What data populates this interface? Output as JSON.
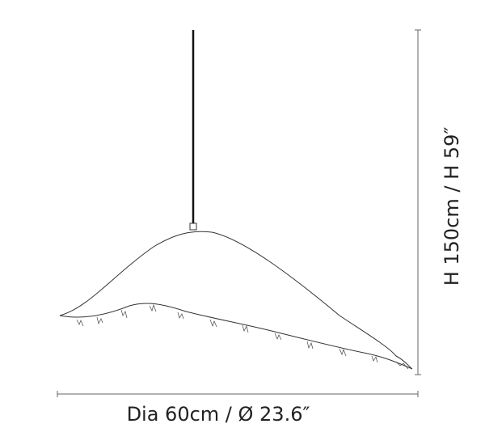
{
  "dimensions": {
    "width": "Dia 60cm / Ø 23.6″",
    "height": "H 150cm / H 59″"
  }
}
